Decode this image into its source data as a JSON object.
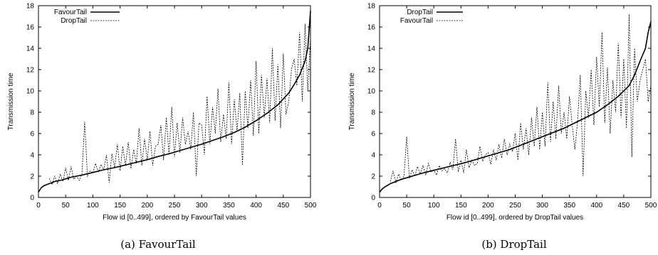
{
  "chart_data": [
    {
      "type": "line",
      "caption": "(a) FavourTail",
      "xlabel": "Flow id [0..499], ordered by FavourTail values",
      "ylabel": "Transmission time",
      "xlim": [
        0,
        500
      ],
      "ylim": [
        0,
        18
      ],
      "xticks": [
        0,
        50,
        100,
        150,
        200,
        250,
        300,
        350,
        400,
        450,
        500
      ],
      "yticks": [
        0,
        2,
        4,
        6,
        8,
        10,
        12,
        14,
        16,
        18
      ],
      "grid": false,
      "legend_position": "top-left",
      "series": [
        {
          "name": "FavourTail",
          "style": "solid",
          "x": [
            0,
            5,
            10,
            20,
            30,
            40,
            50,
            60,
            80,
            100,
            120,
            140,
            160,
            180,
            200,
            220,
            240,
            260,
            280,
            300,
            320,
            340,
            360,
            380,
            400,
            420,
            440,
            460,
            470,
            480,
            490,
            495,
            500
          ],
          "y": [
            0.5,
            0.9,
            1.1,
            1.3,
            1.5,
            1.6,
            1.75,
            1.9,
            2.1,
            2.35,
            2.6,
            2.8,
            3.05,
            3.3,
            3.55,
            3.85,
            4.1,
            4.4,
            4.7,
            5.0,
            5.35,
            5.7,
            6.1,
            6.6,
            7.2,
            7.9,
            8.7,
            9.8,
            10.6,
            11.5,
            12.8,
            14.0,
            17.5
          ]
        },
        {
          "name": "DropTail",
          "style": "dashed",
          "x": [
            20,
            25,
            30,
            35,
            40,
            45,
            50,
            55,
            60,
            65,
            70,
            75,
            80,
            85,
            90,
            95,
            100,
            105,
            110,
            115,
            120,
            125,
            130,
            135,
            140,
            145,
            150,
            155,
            160,
            165,
            170,
            175,
            180,
            185,
            190,
            195,
            200,
            205,
            210,
            215,
            220,
            225,
            230,
            235,
            240,
            245,
            250,
            255,
            260,
            265,
            270,
            275,
            280,
            285,
            290,
            295,
            300,
            305,
            310,
            315,
            320,
            325,
            330,
            335,
            340,
            345,
            350,
            355,
            360,
            365,
            370,
            375,
            380,
            385,
            390,
            395,
            400,
            405,
            410,
            415,
            420,
            425,
            430,
            435,
            440,
            445,
            450,
            455,
            460,
            465,
            470,
            475,
            480,
            485,
            490,
            495,
            500
          ],
          "y": [
            1.8,
            1.2,
            2.0,
            1.3,
            2.2,
            1.5,
            2.8,
            1.6,
            2.9,
            1.7,
            2.0,
            1.6,
            2.2,
            7.1,
            2.0,
            2.5,
            2.3,
            3.2,
            2.4,
            3.1,
            2.6,
            4.0,
            1.4,
            4.1,
            2.8,
            5.0,
            2.5,
            4.8,
            3.0,
            5.2,
            2.7,
            4.5,
            3.2,
            6.5,
            3.0,
            5.5,
            3.5,
            6.2,
            3.0,
            4.8,
            5.0,
            6.8,
            3.5,
            7.5,
            4.0,
            8.5,
            3.8,
            7.0,
            4.2,
            7.5,
            5.0,
            6.2,
            4.5,
            8.0,
            2.0,
            7.0,
            6.8,
            4.0,
            9.5,
            5.0,
            8.5,
            6.0,
            10.2,
            5.2,
            7.8,
            5.5,
            10.8,
            5.0,
            9.2,
            6.2,
            9.8,
            3.0,
            10.0,
            6.5,
            11.0,
            5.8,
            12.8,
            6.0,
            11.5,
            7.5,
            11.2,
            7.0,
            14.0,
            7.2,
            12.5,
            6.5,
            13.5,
            7.8,
            9.0,
            12.0,
            13.0,
            10.5,
            15.5,
            9.0,
            16.3,
            10.0,
            15.0
          ]
        }
      ]
    },
    {
      "type": "line",
      "caption": "(b) DropTail",
      "xlabel": "Flow id [0..499], ordered by DropTail values",
      "ylabel": "Transmission time",
      "xlim": [
        0,
        500
      ],
      "ylim": [
        0,
        18
      ],
      "xticks": [
        0,
        50,
        100,
        150,
        200,
        250,
        300,
        350,
        400,
        450,
        500
      ],
      "yticks": [
        0,
        2,
        4,
        6,
        8,
        10,
        12,
        14,
        16,
        18
      ],
      "grid": false,
      "legend_position": "top-left",
      "series": [
        {
          "name": "DropTail",
          "style": "solid",
          "x": [
            0,
            5,
            10,
            20,
            30,
            40,
            50,
            60,
            80,
            100,
            120,
            140,
            160,
            180,
            200,
            220,
            240,
            260,
            280,
            300,
            320,
            340,
            360,
            380,
            400,
            420,
            440,
            460,
            470,
            480,
            490,
            495,
            500
          ],
          "y": [
            0.5,
            0.8,
            1.0,
            1.3,
            1.5,
            1.7,
            1.85,
            2.0,
            2.3,
            2.55,
            2.8,
            3.05,
            3.3,
            3.6,
            3.9,
            4.2,
            4.5,
            4.9,
            5.3,
            5.7,
            6.1,
            6.5,
            7.0,
            7.5,
            8.0,
            8.7,
            9.5,
            10.5,
            11.5,
            12.8,
            14.0,
            15.5,
            16.5
          ]
        },
        {
          "name": "FavourTail",
          "style": "dashed",
          "x": [
            20,
            25,
            30,
            35,
            40,
            45,
            50,
            55,
            60,
            65,
            70,
            75,
            80,
            85,
            90,
            95,
            100,
            105,
            110,
            115,
            120,
            125,
            130,
            135,
            140,
            145,
            150,
            155,
            160,
            165,
            170,
            175,
            180,
            185,
            190,
            195,
            200,
            205,
            210,
            215,
            220,
            225,
            230,
            235,
            240,
            245,
            250,
            255,
            260,
            265,
            270,
            275,
            280,
            285,
            290,
            295,
            300,
            305,
            310,
            315,
            320,
            325,
            330,
            335,
            340,
            345,
            350,
            355,
            360,
            365,
            370,
            375,
            380,
            385,
            390,
            395,
            400,
            405,
            410,
            415,
            420,
            425,
            430,
            435,
            440,
            445,
            450,
            455,
            460,
            465,
            470,
            475,
            480,
            485,
            490,
            495,
            500
          ],
          "y": [
            1.5,
            2.5,
            1.4,
            2.2,
            1.6,
            2.0,
            5.7,
            1.8,
            2.6,
            2.0,
            2.9,
            2.2,
            3.0,
            2.1,
            3.2,
            2.4,
            2.6,
            2.1,
            3.0,
            2.5,
            2.7,
            2.3,
            3.3,
            2.6,
            5.5,
            2.4,
            3.5,
            2.3,
            4.5,
            2.8,
            3.5,
            3.0,
            3.2,
            4.8,
            3.4,
            4.0,
            4.2,
            3.1,
            4.5,
            3.5,
            5.0,
            3.7,
            5.5,
            4.0,
            5.0,
            4.3,
            6.0,
            3.5,
            7.0,
            4.5,
            6.5,
            4.0,
            7.5,
            4.8,
            8.5,
            4.5,
            8.0,
            4.8,
            10.8,
            5.2,
            9.0,
            5.5,
            10.5,
            6.0,
            8.0,
            5.5,
            9.5,
            6.8,
            4.5,
            7.2,
            11.5,
            2.0,
            10.0,
            7.5,
            12.0,
            6.8,
            13.2,
            8.5,
            15.5,
            7.0,
            12.2,
            6.0,
            11.0,
            8.0,
            14.5,
            7.5,
            13.0,
            6.5,
            17.2,
            3.8,
            14.0,
            9.0,
            11.0,
            12.0,
            13.0,
            9.0,
            10.5
          ]
        }
      ]
    }
  ]
}
